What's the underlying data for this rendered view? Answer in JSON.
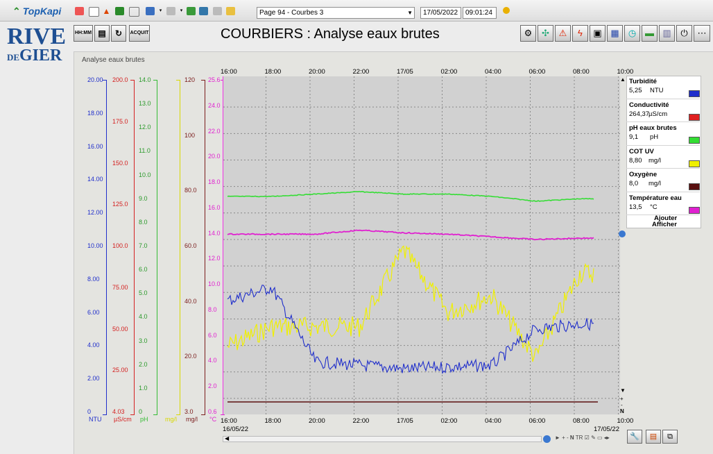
{
  "toolbar": {
    "brand": "TopKapi",
    "page_select": "Page  94 - Courbes 3",
    "date": "17/05/2022",
    "time": "09:01:24"
  },
  "header": {
    "logo": {
      "line1": "RIVE",
      "de": "DE",
      "gier": "GIER"
    },
    "buttons": {
      "hhmm": "HH:MM",
      "acquit": "ACQUIT"
    },
    "title": "COURBIERS : Analyse eaux brutes"
  },
  "panel": {
    "title": "Analyse eaux brutes"
  },
  "axes": {
    "ntu": {
      "color": "#1f2ecb",
      "unit": "NTU",
      "ticks": [
        "20.00",
        "18.00",
        "16.00",
        "14.00",
        "12.00",
        "10.00",
        "8.00",
        "6.00",
        "4.00",
        "2.00",
        "0"
      ]
    },
    "us": {
      "color": "#d42020",
      "unit": "µS/cm",
      "ticks": [
        "200.0",
        "175.0",
        "150.0",
        "125.0",
        "100.0",
        "75.00",
        "50.00",
        "25.00",
        "4.03"
      ]
    },
    "ph": {
      "color": "#33bb33",
      "unit": "pH",
      "ticks": [
        "14.0",
        "13.0",
        "12.0",
        "11.0",
        "10.0",
        "9.0",
        "8.0",
        "7.0",
        "6.0",
        "5.0",
        "4.0",
        "3.0",
        "2.0",
        "1.0",
        "0"
      ]
    },
    "cot": {
      "color": "#d8d800",
      "unit": "mg/l"
    },
    "oxy": {
      "color": "#7a1b1b",
      "unit": "mg/l",
      "ticks": [
        "120",
        "100",
        "80.0",
        "60.0",
        "40.0",
        "20.0",
        "3.0"
      ]
    },
    "temp": {
      "color": "#e020d0",
      "unit": "°C",
      "ticks": [
        "25.6",
        "24.0",
        "22.0",
        "20.0",
        "18.0",
        "16.0",
        "14.0",
        "12.0",
        "10.0",
        "8.0",
        "6.0",
        "4.0",
        "2.0",
        "0.6"
      ]
    }
  },
  "xaxis": {
    "top": [
      "16:00",
      "18:00",
      "20:00",
      "22:00",
      "17/05",
      "02:00",
      "04:00",
      "06:00",
      "08:00",
      "10:00"
    ],
    "bottom": [
      "16:00",
      "18:00",
      "20:00",
      "22:00",
      "17/05",
      "02:00",
      "04:00",
      "06:00",
      "08:00",
      "10:00"
    ],
    "start_date": "16/05/22",
    "end_date": "17/05/22"
  },
  "legend": {
    "items": [
      {
        "name": "Turbidité",
        "value": "5,25",
        "unit": "NTU",
        "color": "#1f2ecb"
      },
      {
        "name": "Conductivité",
        "value": "264,37",
        "unit": "µS/cm",
        "color": "#e02020"
      },
      {
        "name": "pH eaux brutes",
        "value": "9,1",
        "unit": "pH",
        "color": "#33dd33"
      },
      {
        "name": "COT UV",
        "value": "8,80",
        "unit": "mg/l",
        "color": "#f0f000"
      },
      {
        "name": "Oxygène",
        "value": "8,0",
        "unit": "mg/l",
        "color": "#5a1010"
      },
      {
        "name": "Température eau",
        "value": "13,5",
        "unit": "°C",
        "color": "#e020d0"
      }
    ],
    "add_label": "Ajouter",
    "show_label": "Afficher"
  },
  "chart_data": {
    "type": "line",
    "x": [
      "16:00",
      "18:00",
      "20:00",
      "22:00",
      "00:00",
      "02:00",
      "04:00",
      "06:00",
      "08:00"
    ],
    "series": [
      {
        "name": "pH eaux brutes",
        "color": "#33dd33",
        "values": [
          9.1,
          9.1,
          9.2,
          9.3,
          9.2,
          9.2,
          9.1,
          8.9,
          9.0
        ]
      },
      {
        "name": "Température eau",
        "color": "#e020d0",
        "values": [
          14.0,
          14.0,
          14.0,
          14.3,
          14.1,
          14.0,
          13.8,
          13.6,
          13.7
        ]
      },
      {
        "name": "Turbidité",
        "color": "#1f2ecb",
        "values": [
          6.7,
          7.5,
          3.0,
          2.8,
          2.6,
          2.7,
          2.8,
          5.0,
          5.3
        ]
      },
      {
        "name": "COT UV",
        "color": "#f0f000",
        "values": [
          26.0,
          33.0,
          33.0,
          33.0,
          60.0,
          38.0,
          44.0,
          22.0,
          52.0
        ]
      },
      {
        "name": "Oxygène",
        "color": "#5a1010",
        "values": [
          8.0,
          8.0,
          8.0,
          8.0,
          8.0,
          8.0,
          8.0,
          8.0,
          8.0
        ]
      }
    ]
  }
}
